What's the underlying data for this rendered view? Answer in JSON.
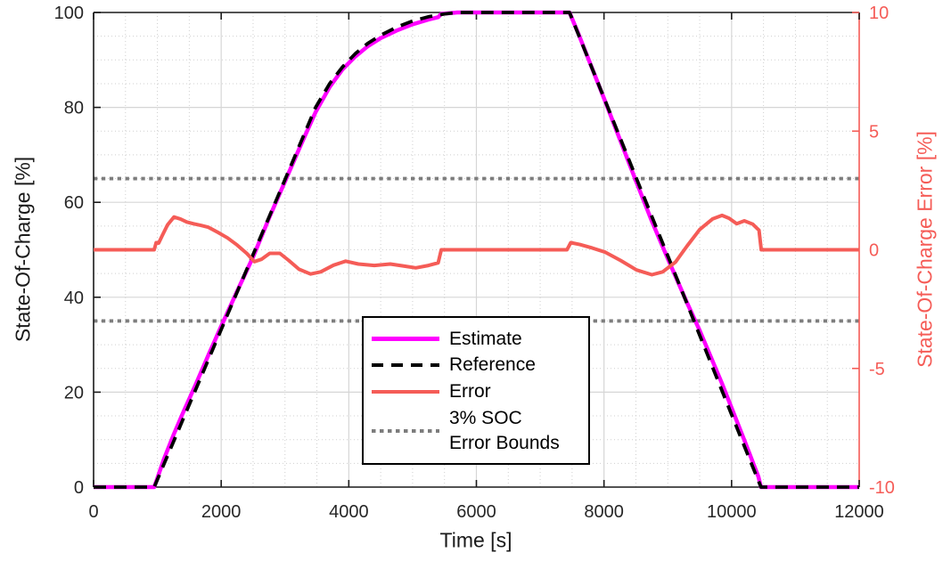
{
  "figure": {
    "background": "#ffffff",
    "axes": {
      "x_label": "Time [s]",
      "y_left_label": "State-Of-Charge [%]",
      "y_right_label": "State-Of-Charge Error [%]",
      "axis_color": "#1a1a1a",
      "y_right_color": "#F55C57",
      "tick_label_color": "#262626"
    },
    "legend": {
      "position": "inside-lower-center",
      "items": [
        {
          "label": "Estimate"
        },
        {
          "label": "Reference"
        },
        {
          "label": "Error"
        },
        {
          "label_line1": "3% SOC",
          "label_line2": "Error Bounds"
        }
      ]
    }
  },
  "chart_data": {
    "type": "line",
    "title": "",
    "xlabel": "Time [s]",
    "ylabel_left": "State-Of-Charge [%]",
    "ylabel_right": "State-Of-Charge Error [%]",
    "xlim": [
      0,
      12000
    ],
    "ylim_left": [
      0,
      100
    ],
    "ylim_right": [
      -10,
      10
    ],
    "x_ticks": [
      0,
      2000,
      4000,
      6000,
      8000,
      10000,
      12000
    ],
    "y_left_ticks": [
      0,
      20,
      40,
      60,
      80,
      100
    ],
    "y_right_ticks": [
      -10,
      -5,
      0,
      5,
      10
    ],
    "x_minor_step": 500,
    "y_left_minor_step": 5,
    "grid": "major solid + minor dotted, inside axes only",
    "legend_position": "lower center-left inside axes",
    "grid_major_color": "#d6d6d6",
    "grid_minor_color": "#cfcfcf",
    "series": [
      {
        "name": "Estimate",
        "axis": "left",
        "color": "#FF00FF",
        "style": "solid",
        "width": 4.5,
        "points": [
          [
            0,
            0
          ],
          [
            950,
            0
          ],
          [
            1000,
            1.9
          ],
          [
            1100,
            5.8
          ],
          [
            1250,
            10.9
          ],
          [
            1400,
            15.6
          ],
          [
            1600,
            21.6
          ],
          [
            1800,
            27.8
          ],
          [
            2000,
            33.9
          ],
          [
            2250,
            41.3
          ],
          [
            2500,
            48.5
          ],
          [
            2750,
            56.7
          ],
          [
            3000,
            64.4
          ],
          [
            3250,
            72.1
          ],
          [
            3480,
            79.0
          ],
          [
            3700,
            84.3
          ],
          [
            3900,
            88.0
          ],
          [
            4100,
            90.7
          ],
          [
            4300,
            92.9
          ],
          [
            4500,
            94.6
          ],
          [
            4750,
            96.2
          ],
          [
            5000,
            97.5
          ],
          [
            5250,
            98.5
          ],
          [
            5400,
            99.0
          ],
          [
            5450,
            99.7
          ],
          [
            5700,
            100
          ],
          [
            7460,
            100
          ],
          [
            7600,
            95.5
          ],
          [
            8000,
            81.9
          ],
          [
            8250,
            73.2
          ],
          [
            8500,
            64.5
          ],
          [
            8750,
            56.0
          ],
          [
            9000,
            48.1
          ],
          [
            9300,
            38.9
          ],
          [
            9500,
            33.0
          ],
          [
            9700,
            26.6
          ],
          [
            9850,
            21.8
          ],
          [
            10000,
            16.7
          ],
          [
            10200,
            9.9
          ],
          [
            10420,
            2.2
          ],
          [
            10460,
            0
          ],
          [
            12000,
            0
          ]
        ]
      },
      {
        "name": "Reference",
        "axis": "left",
        "color": "#000000",
        "style": "dashed",
        "width": 3.8,
        "points": [
          [
            0,
            0
          ],
          [
            950,
            0
          ],
          [
            1500,
            17.4
          ],
          [
            2000,
            33.2
          ],
          [
            2500,
            49.0
          ],
          [
            3000,
            64.8
          ],
          [
            3250,
            72.7
          ],
          [
            3480,
            80.0
          ],
          [
            3700,
            85.0
          ],
          [
            3900,
            88.5
          ],
          [
            4100,
            91.3
          ],
          [
            4300,
            93.5
          ],
          [
            4500,
            95.2
          ],
          [
            4750,
            96.9
          ],
          [
            5000,
            98.2
          ],
          [
            5250,
            99.1
          ],
          [
            5500,
            99.7
          ],
          [
            5700,
            100
          ],
          [
            7460,
            100
          ],
          [
            8000,
            82.0
          ],
          [
            8500,
            65.3
          ],
          [
            9000,
            48.7
          ],
          [
            9500,
            32.0
          ],
          [
            10000,
            15.3
          ],
          [
            10300,
            5.3
          ],
          [
            10460,
            0
          ],
          [
            12000,
            0
          ]
        ]
      },
      {
        "name": "Error",
        "axis": "right",
        "color": "#F55C57",
        "style": "solid",
        "width": 4,
        "points": [
          [
            0,
            0
          ],
          [
            950,
            0
          ],
          [
            980,
            0.3
          ],
          [
            1020,
            0.28
          ],
          [
            1080,
            0.62
          ],
          [
            1160,
            1.05
          ],
          [
            1260,
            1.38
          ],
          [
            1360,
            1.3
          ],
          [
            1460,
            1.17
          ],
          [
            1560,
            1.1
          ],
          [
            1680,
            1.03
          ],
          [
            1800,
            0.95
          ],
          [
            1950,
            0.73
          ],
          [
            2100,
            0.5
          ],
          [
            2250,
            0.2
          ],
          [
            2400,
            -0.15
          ],
          [
            2520,
            -0.5
          ],
          [
            2630,
            -0.4
          ],
          [
            2760,
            -0.15
          ],
          [
            2920,
            -0.15
          ],
          [
            3060,
            -0.45
          ],
          [
            3220,
            -0.82
          ],
          [
            3400,
            -1.02
          ],
          [
            3560,
            -0.93
          ],
          [
            3760,
            -0.65
          ],
          [
            3950,
            -0.48
          ],
          [
            4150,
            -0.6
          ],
          [
            4400,
            -0.66
          ],
          [
            4650,
            -0.6
          ],
          [
            4850,
            -0.68
          ],
          [
            5050,
            -0.76
          ],
          [
            5250,
            -0.66
          ],
          [
            5400,
            -0.55
          ],
          [
            5450,
            0
          ],
          [
            7420,
            0
          ],
          [
            7480,
            0.3
          ],
          [
            7620,
            0.22
          ],
          [
            7820,
            0.07
          ],
          [
            8020,
            -0.1
          ],
          [
            8260,
            -0.45
          ],
          [
            8510,
            -0.85
          ],
          [
            8750,
            -1.05
          ],
          [
            8920,
            -0.93
          ],
          [
            9120,
            -0.52
          ],
          [
            9300,
            0.15
          ],
          [
            9500,
            0.85
          ],
          [
            9700,
            1.3
          ],
          [
            9850,
            1.45
          ],
          [
            9960,
            1.33
          ],
          [
            10080,
            1.1
          ],
          [
            10200,
            1.22
          ],
          [
            10330,
            1.08
          ],
          [
            10430,
            0.82
          ],
          [
            10465,
            0
          ],
          [
            12000,
            0
          ]
        ]
      }
    ],
    "error_bounds": {
      "label": "3% SOC Error Bounds",
      "values_right_axis": [
        3,
        -3
      ],
      "color": "#7d7d7d",
      "style": "dotted",
      "width": 3.8
    }
  }
}
